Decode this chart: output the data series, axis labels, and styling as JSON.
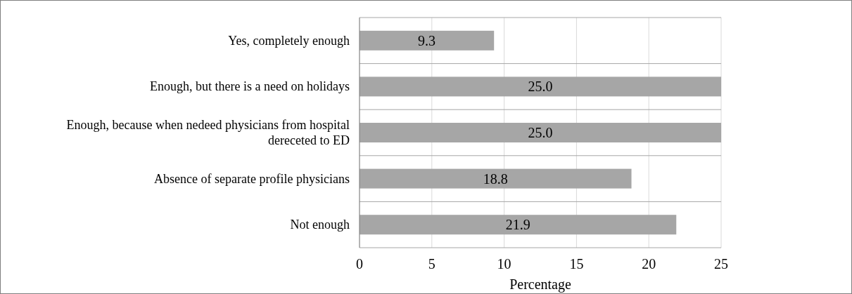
{
  "chart_data": {
    "type": "bar",
    "orientation": "horizontal",
    "xlabel": "Percentage",
    "categories": [
      "Yes, completely enough",
      "Enough, but there is a need on holidays",
      "Enough, because when nedeed physicians from hospital dereceted to ED",
      "Absence of separate profile physicians",
      "Not enough"
    ],
    "values": [
      9.3,
      25.0,
      25.0,
      18.8,
      21.9
    ],
    "value_labels": [
      "9.3",
      "25.0",
      "25.0",
      "18.8",
      "21.9"
    ],
    "color": "#a6a6a6",
    "xlim": [
      0,
      25
    ],
    "xticks": [
      0,
      5,
      10,
      15,
      20,
      25
    ],
    "grid": true
  }
}
